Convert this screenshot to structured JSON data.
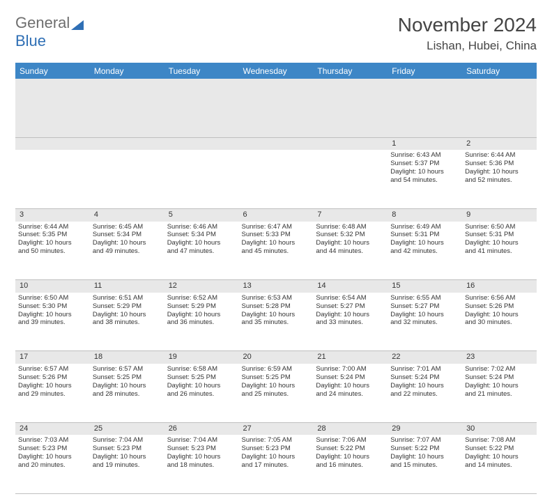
{
  "logo": {
    "part1": "General",
    "part2": "Blue"
  },
  "title": "November 2024",
  "location": "Lishan, Hubei, China",
  "colors": {
    "header_bg": "#3d86c6",
    "header_fg": "#ffffff",
    "daynum_bg": "#e8e8e8",
    "row_divider": "#3d86c6",
    "text": "#333333",
    "logo_gray": "#6e6e6e",
    "logo_blue": "#2f6fb5"
  },
  "weekdays": [
    "Sunday",
    "Monday",
    "Tuesday",
    "Wednesday",
    "Thursday",
    "Friday",
    "Saturday"
  ],
  "weeks": [
    {
      "nums": [
        "",
        "",
        "",
        "",
        "",
        "1",
        "2"
      ],
      "cells": [
        null,
        null,
        null,
        null,
        null,
        {
          "sunrise": "Sunrise: 6:43 AM",
          "sunset": "Sunset: 5:37 PM",
          "day1": "Daylight: 10 hours",
          "day2": "and 54 minutes."
        },
        {
          "sunrise": "Sunrise: 6:44 AM",
          "sunset": "Sunset: 5:36 PM",
          "day1": "Daylight: 10 hours",
          "day2": "and 52 minutes."
        }
      ]
    },
    {
      "nums": [
        "3",
        "4",
        "5",
        "6",
        "7",
        "8",
        "9"
      ],
      "cells": [
        {
          "sunrise": "Sunrise: 6:44 AM",
          "sunset": "Sunset: 5:35 PM",
          "day1": "Daylight: 10 hours",
          "day2": "and 50 minutes."
        },
        {
          "sunrise": "Sunrise: 6:45 AM",
          "sunset": "Sunset: 5:34 PM",
          "day1": "Daylight: 10 hours",
          "day2": "and 49 minutes."
        },
        {
          "sunrise": "Sunrise: 6:46 AM",
          "sunset": "Sunset: 5:34 PM",
          "day1": "Daylight: 10 hours",
          "day2": "and 47 minutes."
        },
        {
          "sunrise": "Sunrise: 6:47 AM",
          "sunset": "Sunset: 5:33 PM",
          "day1": "Daylight: 10 hours",
          "day2": "and 45 minutes."
        },
        {
          "sunrise": "Sunrise: 6:48 AM",
          "sunset": "Sunset: 5:32 PM",
          "day1": "Daylight: 10 hours",
          "day2": "and 44 minutes."
        },
        {
          "sunrise": "Sunrise: 6:49 AM",
          "sunset": "Sunset: 5:31 PM",
          "day1": "Daylight: 10 hours",
          "day2": "and 42 minutes."
        },
        {
          "sunrise": "Sunrise: 6:50 AM",
          "sunset": "Sunset: 5:31 PM",
          "day1": "Daylight: 10 hours",
          "day2": "and 41 minutes."
        }
      ]
    },
    {
      "nums": [
        "10",
        "11",
        "12",
        "13",
        "14",
        "15",
        "16"
      ],
      "cells": [
        {
          "sunrise": "Sunrise: 6:50 AM",
          "sunset": "Sunset: 5:30 PM",
          "day1": "Daylight: 10 hours",
          "day2": "and 39 minutes."
        },
        {
          "sunrise": "Sunrise: 6:51 AM",
          "sunset": "Sunset: 5:29 PM",
          "day1": "Daylight: 10 hours",
          "day2": "and 38 minutes."
        },
        {
          "sunrise": "Sunrise: 6:52 AM",
          "sunset": "Sunset: 5:29 PM",
          "day1": "Daylight: 10 hours",
          "day2": "and 36 minutes."
        },
        {
          "sunrise": "Sunrise: 6:53 AM",
          "sunset": "Sunset: 5:28 PM",
          "day1": "Daylight: 10 hours",
          "day2": "and 35 minutes."
        },
        {
          "sunrise": "Sunrise: 6:54 AM",
          "sunset": "Sunset: 5:27 PM",
          "day1": "Daylight: 10 hours",
          "day2": "and 33 minutes."
        },
        {
          "sunrise": "Sunrise: 6:55 AM",
          "sunset": "Sunset: 5:27 PM",
          "day1": "Daylight: 10 hours",
          "day2": "and 32 minutes."
        },
        {
          "sunrise": "Sunrise: 6:56 AM",
          "sunset": "Sunset: 5:26 PM",
          "day1": "Daylight: 10 hours",
          "day2": "and 30 minutes."
        }
      ]
    },
    {
      "nums": [
        "17",
        "18",
        "19",
        "20",
        "21",
        "22",
        "23"
      ],
      "cells": [
        {
          "sunrise": "Sunrise: 6:57 AM",
          "sunset": "Sunset: 5:26 PM",
          "day1": "Daylight: 10 hours",
          "day2": "and 29 minutes."
        },
        {
          "sunrise": "Sunrise: 6:57 AM",
          "sunset": "Sunset: 5:25 PM",
          "day1": "Daylight: 10 hours",
          "day2": "and 28 minutes."
        },
        {
          "sunrise": "Sunrise: 6:58 AM",
          "sunset": "Sunset: 5:25 PM",
          "day1": "Daylight: 10 hours",
          "day2": "and 26 minutes."
        },
        {
          "sunrise": "Sunrise: 6:59 AM",
          "sunset": "Sunset: 5:25 PM",
          "day1": "Daylight: 10 hours",
          "day2": "and 25 minutes."
        },
        {
          "sunrise": "Sunrise: 7:00 AM",
          "sunset": "Sunset: 5:24 PM",
          "day1": "Daylight: 10 hours",
          "day2": "and 24 minutes."
        },
        {
          "sunrise": "Sunrise: 7:01 AM",
          "sunset": "Sunset: 5:24 PM",
          "day1": "Daylight: 10 hours",
          "day2": "and 22 minutes."
        },
        {
          "sunrise": "Sunrise: 7:02 AM",
          "sunset": "Sunset: 5:24 PM",
          "day1": "Daylight: 10 hours",
          "day2": "and 21 minutes."
        }
      ]
    },
    {
      "nums": [
        "24",
        "25",
        "26",
        "27",
        "28",
        "29",
        "30"
      ],
      "cells": [
        {
          "sunrise": "Sunrise: 7:03 AM",
          "sunset": "Sunset: 5:23 PM",
          "day1": "Daylight: 10 hours",
          "day2": "and 20 minutes."
        },
        {
          "sunrise": "Sunrise: 7:04 AM",
          "sunset": "Sunset: 5:23 PM",
          "day1": "Daylight: 10 hours",
          "day2": "and 19 minutes."
        },
        {
          "sunrise": "Sunrise: 7:04 AM",
          "sunset": "Sunset: 5:23 PM",
          "day1": "Daylight: 10 hours",
          "day2": "and 18 minutes."
        },
        {
          "sunrise": "Sunrise: 7:05 AM",
          "sunset": "Sunset: 5:23 PM",
          "day1": "Daylight: 10 hours",
          "day2": "and 17 minutes."
        },
        {
          "sunrise": "Sunrise: 7:06 AM",
          "sunset": "Sunset: 5:22 PM",
          "day1": "Daylight: 10 hours",
          "day2": "and 16 minutes."
        },
        {
          "sunrise": "Sunrise: 7:07 AM",
          "sunset": "Sunset: 5:22 PM",
          "day1": "Daylight: 10 hours",
          "day2": "and 15 minutes."
        },
        {
          "sunrise": "Sunrise: 7:08 AM",
          "sunset": "Sunset: 5:22 PM",
          "day1": "Daylight: 10 hours",
          "day2": "and 14 minutes."
        }
      ]
    }
  ]
}
